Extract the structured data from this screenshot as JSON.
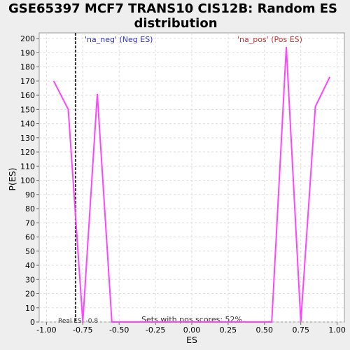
{
  "chart_data": {
    "type": "line",
    "title_line1": "GSE65397 MCF7 TRANS10 CIS12B: Random ES",
    "title_line2": "distribution",
    "xlabel": "ES",
    "ylabel": "P(ES)",
    "xlim": [
      -1.05,
      1.05
    ],
    "ylim": [
      0,
      204
    ],
    "x_ticks": [
      -1.0,
      -0.75,
      -0.5,
      -0.25,
      0.0,
      0.25,
      0.5,
      0.75,
      1.0
    ],
    "x_tick_labels": [
      "-1.00",
      "-0.75",
      "-0.50",
      "-0.25",
      "0.00",
      "0.25",
      "0.50",
      "0.75",
      "1.00"
    ],
    "y_ticks": [
      0,
      10,
      20,
      30,
      40,
      50,
      60,
      70,
      80,
      90,
      100,
      110,
      120,
      130,
      140,
      150,
      160,
      170,
      180,
      190,
      200
    ],
    "grid": true,
    "series": [
      {
        "color": "#ff44ff",
        "x": [
          -0.95,
          -0.85,
          -0.75,
          -0.65,
          -0.55,
          0.0,
          0.55,
          0.65,
          0.75,
          0.85,
          0.95
        ],
        "y": [
          170,
          150,
          0,
          161,
          0,
          0,
          0,
          194,
          0,
          152,
          173
        ]
      }
    ],
    "real_es": {
      "value": -0.8,
      "label": "Real ES: -0.8"
    },
    "neg_label": {
      "text": "'na_neg' (Neg ES)",
      "color": "#3333cc"
    },
    "pos_label": {
      "text": "'na_pos' (Pos ES)",
      "color": "#cc3333"
    },
    "note": "Sets with pos scores: 52%"
  }
}
